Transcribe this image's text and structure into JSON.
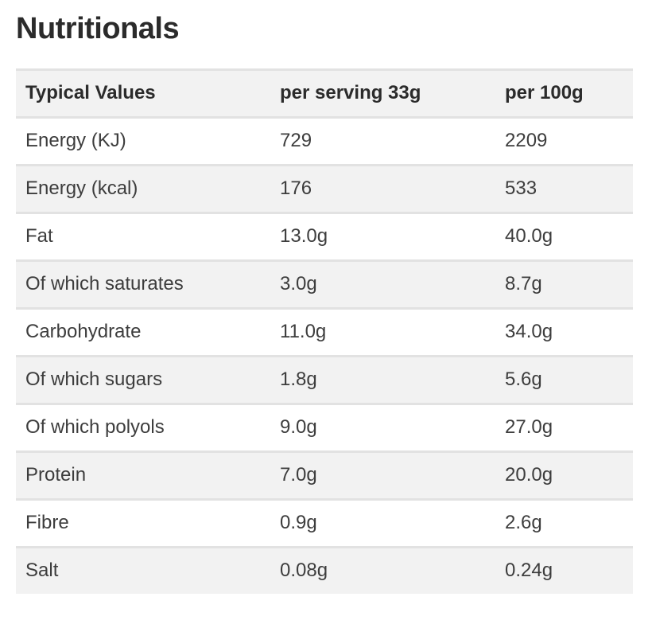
{
  "page": {
    "title": "Nutritionals"
  },
  "nutrition_table": {
    "columns": {
      "label": "Typical Values",
      "per_serving": "per serving 33g",
      "per_100": "per 100g"
    },
    "rows": [
      {
        "label": "Energy (KJ)",
        "per_serving": "729",
        "per_100": "2209"
      },
      {
        "label": "Energy (kcal)",
        "per_serving": "176",
        "per_100": "533"
      },
      {
        "label": "Fat",
        "per_serving": "13.0g",
        "per_100": "40.0g"
      },
      {
        "label": "Of which saturates",
        "per_serving": "3.0g",
        "per_100": "8.7g"
      },
      {
        "label": "Carbohydrate",
        "per_serving": "11.0g",
        "per_100": "34.0g"
      },
      {
        "label": "Of which sugars",
        "per_serving": "1.8g",
        "per_100": "5.6g"
      },
      {
        "label": "Of which polyols",
        "per_serving": "9.0g",
        "per_100": "27.0g"
      },
      {
        "label": "Protein",
        "per_serving": "7.0g",
        "per_100": "20.0g"
      },
      {
        "label": "Fibre",
        "per_serving": "0.9g",
        "per_100": "2.6g"
      },
      {
        "label": "Salt",
        "per_serving": "0.08g",
        "per_100": "0.24g"
      }
    ]
  },
  "colors": {
    "title_text": "#2b2b2b",
    "body_text": "#3d3d3d",
    "shaded_row_bg": "#f2f2f2",
    "plain_row_bg": "#ffffff",
    "row_separator": "#e2e2e2"
  }
}
